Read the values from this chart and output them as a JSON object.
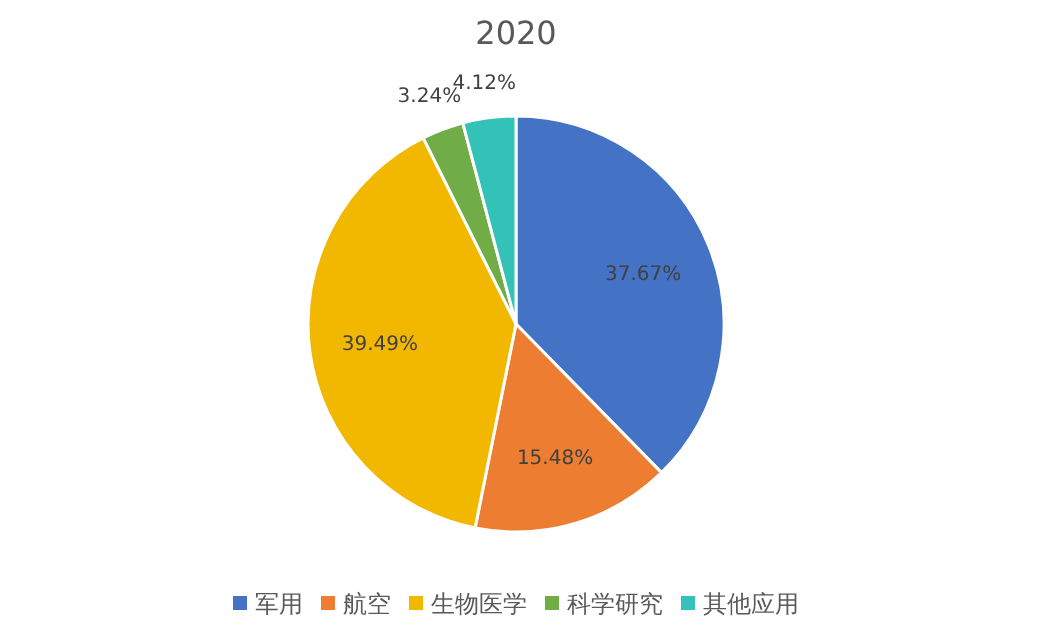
{
  "chart_data": {
    "type": "pie",
    "title": "2020",
    "categories": [
      "军用",
      "航空",
      "生物医学",
      "科学研究",
      "其他应用"
    ],
    "values": [
      37.67,
      15.48,
      39.49,
      3.24,
      4.12
    ],
    "colors": [
      "#4472c4",
      "#ed7d31",
      "#f2b800",
      "#70ad47",
      "#33c2b8"
    ],
    "value_labels": [
      "37.67%",
      "15.48%",
      "39.49%",
      "3.24%",
      "4.12%"
    ],
    "legend": "bottom"
  }
}
